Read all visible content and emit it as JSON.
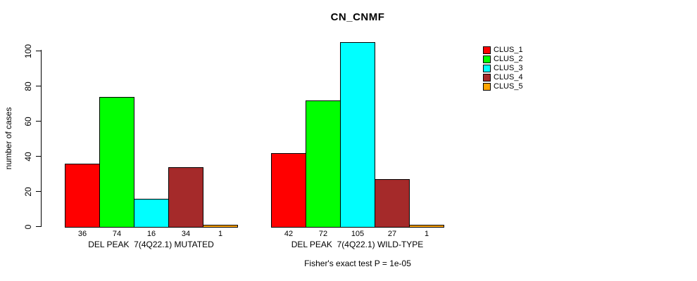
{
  "chart_data": {
    "type": "bar",
    "title": "CN_CNMF",
    "ylabel": "number of cases",
    "ylim": [
      0,
      100
    ],
    "yticks": [
      0,
      20,
      40,
      60,
      80,
      100
    ],
    "grid": false,
    "categories": [
      "CLUS_1",
      "CLUS_2",
      "CLUS_3",
      "CLUS_4",
      "CLUS_5"
    ],
    "colors": [
      "#ff0000",
      "#00ff00",
      "#00ffff",
      "#a52a2a",
      "#ffa500"
    ],
    "groups": [
      {
        "label": "DEL PEAK  7(4Q22.1) MUTATED",
        "values": [
          36,
          74,
          16,
          34,
          1
        ]
      },
      {
        "label": "DEL PEAK  7(4Q22.1) WILD-TYPE",
        "values": [
          42,
          72,
          105,
          27,
          1
        ]
      }
    ],
    "legend": {
      "position": "right",
      "entries": [
        "CLUS_1",
        "CLUS_2",
        "CLUS_3",
        "CLUS_4",
        "CLUS_5"
      ]
    },
    "bar_value_labels": true,
    "annotation": "Fisher's exact test P = 1e-05"
  }
}
